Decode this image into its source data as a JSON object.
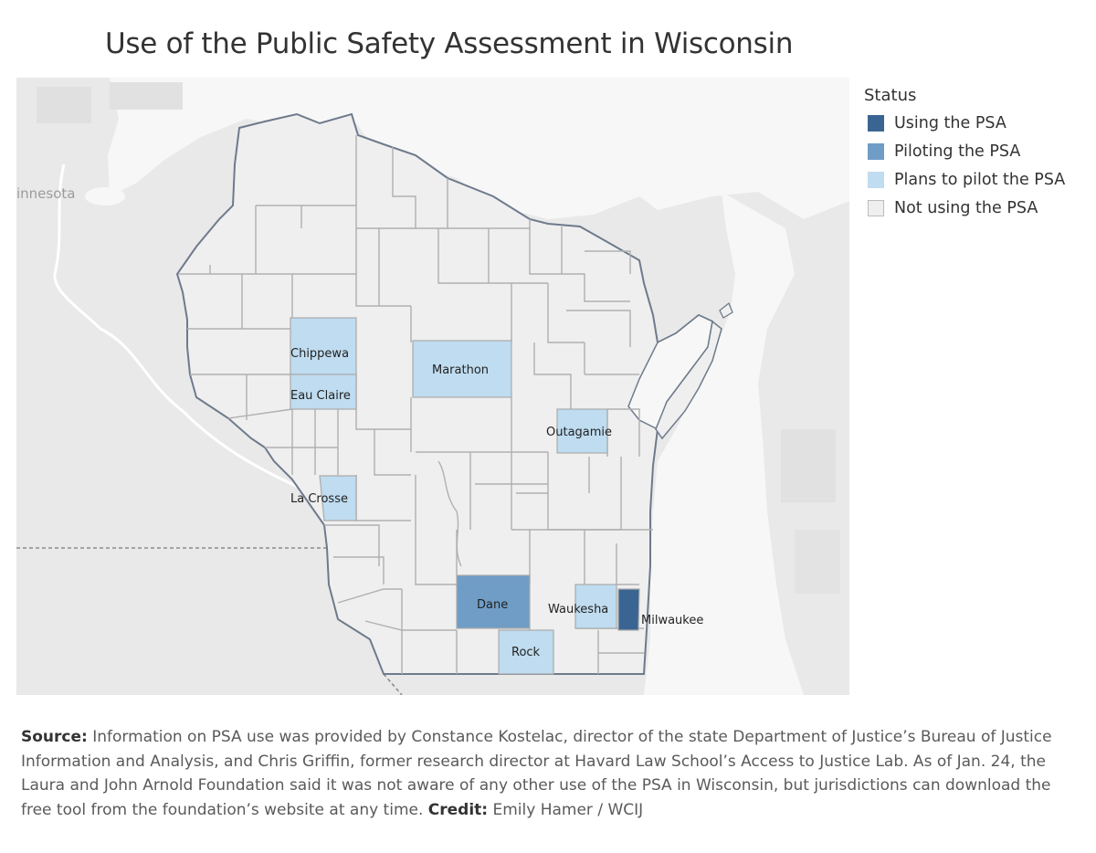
{
  "title": "Use of the Public Safety Assessment in Wisconsin",
  "colors": {
    "using": "#3a6593",
    "piloting": "#6f9dc6",
    "plans": "#bfdcf0",
    "not_using": "#efefef",
    "background_land": "#e9e9e9",
    "water": "#f7f7f7",
    "county_border": "#aaaaaa",
    "state_border": "#6e7a8c"
  },
  "legend": {
    "title": "Status",
    "items": [
      {
        "label": "Using the PSA",
        "color": "#3a6593"
      },
      {
        "label": "Piloting the PSA",
        "color": "#6f9dc6"
      },
      {
        "label": "Plans to pilot the PSA",
        "color": "#bfdcf0"
      },
      {
        "label": "Not using the PSA",
        "color": "#efefef"
      }
    ]
  },
  "map": {
    "background_labels": {
      "minnesota": "innesota"
    },
    "counties": {
      "chippewa": "Chippewa",
      "eau_claire": "Eau Claire",
      "marathon": "Marathon",
      "outagamie": "Outagamie",
      "la_crosse": "La Crosse",
      "dane": "Dane",
      "waukesha": "Waukesha",
      "milwaukee": "Milwaukee",
      "rock": "Rock"
    }
  },
  "footnote": {
    "source_label": "Source:",
    "source_text": "Information on PSA use was provided by Constance Kostelac, director of the state Department of Justice’s Bureau of Justice Information and Analysis, and Chris Griffin, former research director at Havard Law School’s Access to Justice Lab. As of Jan. 24, the Laura and John Arnold Foundation said it was not aware of any other use of the PSA in Wisconsin, but jurisdictions can download the free tool from the foundation’s website at any time.",
    "credit_label": "Credit:",
    "credit_text": "Emily Hamer / WCIJ"
  }
}
